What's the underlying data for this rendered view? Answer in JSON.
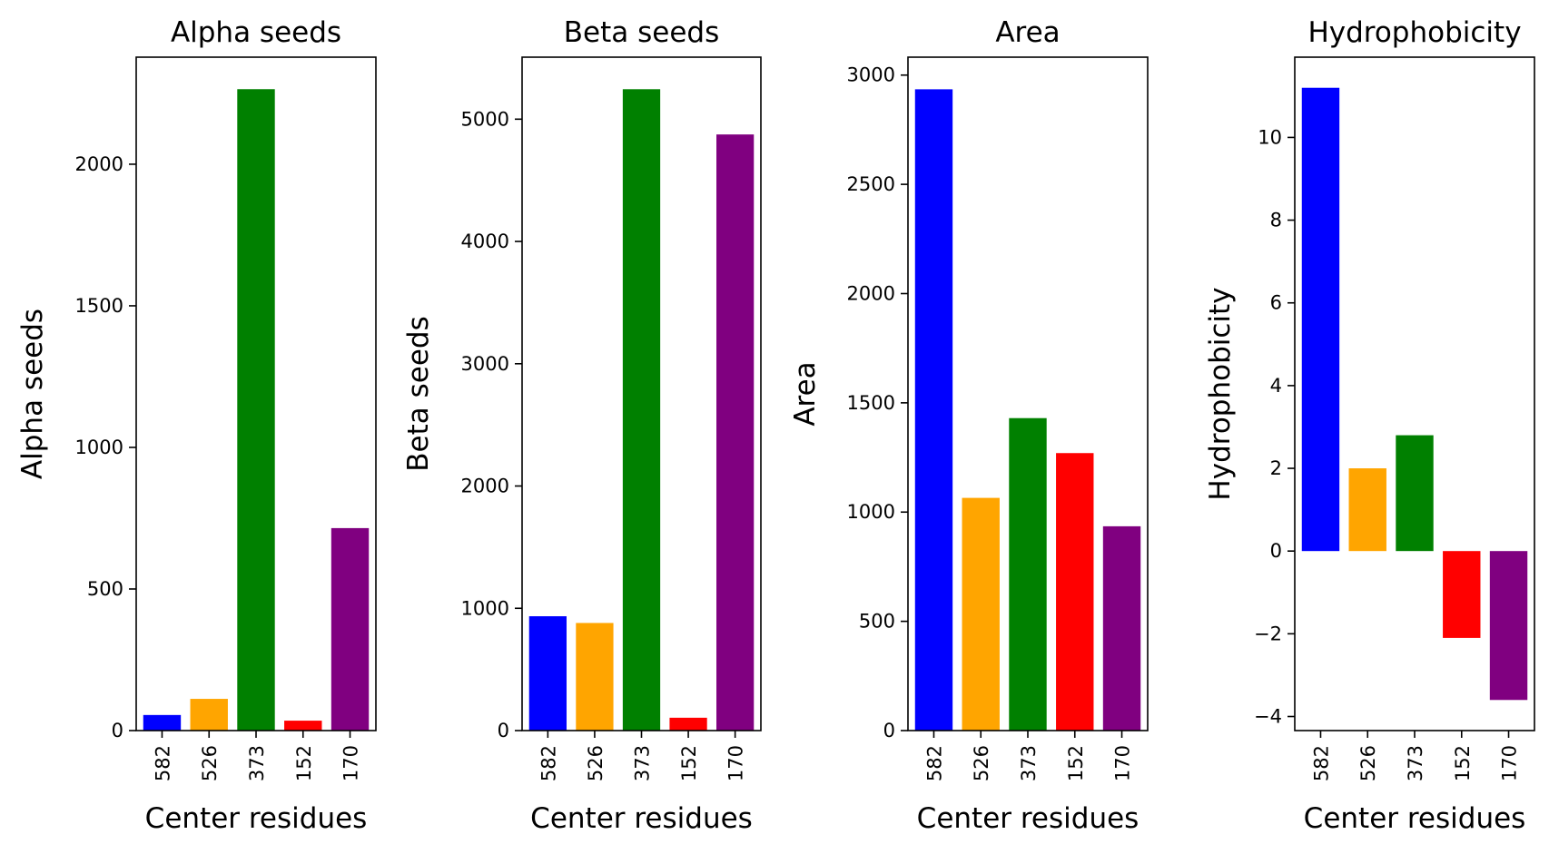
{
  "chart_data": [
    {
      "type": "bar",
      "title": "Alpha seeds",
      "xlabel": "Center residues",
      "ylabel": "Alpha seeds",
      "categories": [
        "582",
        "526",
        "373",
        "152",
        "170"
      ],
      "values": [
        55,
        112,
        2265,
        35,
        715
      ],
      "colors": [
        "#0000ff",
        "#ffa500",
        "#008000",
        "#ff0000",
        "#800080"
      ],
      "ylim": [
        0,
        2378
      ],
      "yticks": [
        0,
        500,
        1000,
        1500,
        2000
      ],
      "ytick_labels": [
        "0",
        "500",
        "1000",
        "1500",
        "2000"
      ],
      "grid": false,
      "legend": "none"
    },
    {
      "type": "bar",
      "title": "Beta seeds",
      "xlabel": "Center residues",
      "ylabel": "Beta seeds",
      "categories": [
        "582",
        "526",
        "373",
        "152",
        "170"
      ],
      "values": [
        935,
        880,
        5245,
        105,
        4875
      ],
      "colors": [
        "#0000ff",
        "#ffa500",
        "#008000",
        "#ff0000",
        "#800080"
      ],
      "ylim": [
        0,
        5507
      ],
      "yticks": [
        0,
        1000,
        2000,
        3000,
        4000,
        5000
      ],
      "ytick_labels": [
        "0",
        "1000",
        "2000",
        "3000",
        "4000",
        "5000"
      ],
      "grid": false,
      "legend": "none"
    },
    {
      "type": "bar",
      "title": "Area",
      "xlabel": "Center residues",
      "ylabel": "Area",
      "categories": [
        "582",
        "526",
        "373",
        "152",
        "170"
      ],
      "values": [
        2935,
        1065,
        1430,
        1270,
        935
      ],
      "colors": [
        "#0000ff",
        "#ffa500",
        "#008000",
        "#ff0000",
        "#800080"
      ],
      "ylim": [
        0,
        3082
      ],
      "yticks": [
        0,
        500,
        1000,
        1500,
        2000,
        2500,
        3000
      ],
      "ytick_labels": [
        "0",
        "500",
        "1000",
        "1500",
        "2000",
        "2500",
        "3000"
      ],
      "grid": false,
      "legend": "none"
    },
    {
      "type": "bar",
      "title": "Hydrophobicity",
      "xlabel": "Center residues",
      "ylabel": "Hydrophobicity",
      "categories": [
        "582",
        "526",
        "373",
        "152",
        "170"
      ],
      "values": [
        11.2,
        2.0,
        2.8,
        -2.1,
        -3.6
      ],
      "colors": [
        "#0000ff",
        "#ffa500",
        "#008000",
        "#ff0000",
        "#800080"
      ],
      "ylim": [
        -4.34,
        11.94
      ],
      "yticks": [
        -4,
        -2,
        0,
        2,
        4,
        6,
        8,
        10
      ],
      "ytick_labels": [
        "−4",
        "−2",
        "0",
        "2",
        "4",
        "6",
        "8",
        "10"
      ],
      "grid": false,
      "legend": "none"
    }
  ]
}
